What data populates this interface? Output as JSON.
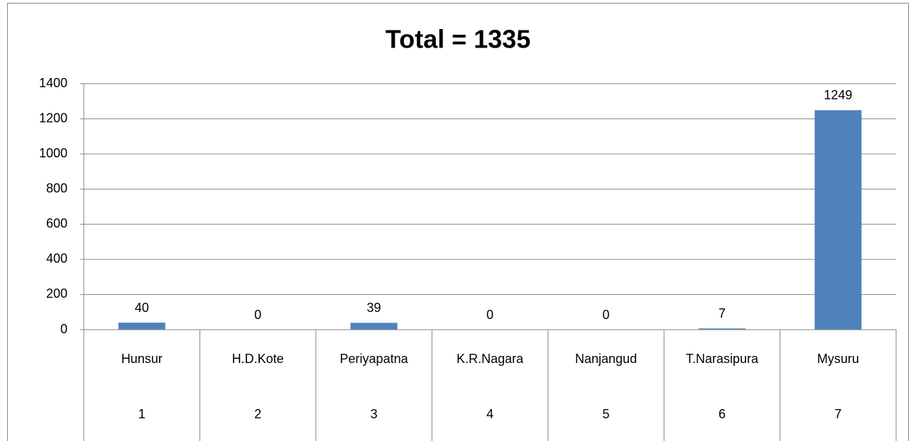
{
  "chart_data": {
    "type": "bar",
    "title": "Total = 1335",
    "categories": [
      "Hunsur",
      "H.D.Kote",
      "Periyapatna",
      "K.R.Nagara",
      "Nanjangud",
      "T.Narasipura",
      "Mysuru"
    ],
    "category_numbers": [
      1,
      2,
      3,
      4,
      5,
      6,
      7
    ],
    "values": [
      40,
      0,
      39,
      0,
      0,
      7,
      1249
    ],
    "color": "#4f81bd",
    "ylim": [
      0,
      1400
    ],
    "yticks": [
      0,
      200,
      400,
      600,
      800,
      1000,
      1200,
      1400
    ],
    "grid": true
  }
}
